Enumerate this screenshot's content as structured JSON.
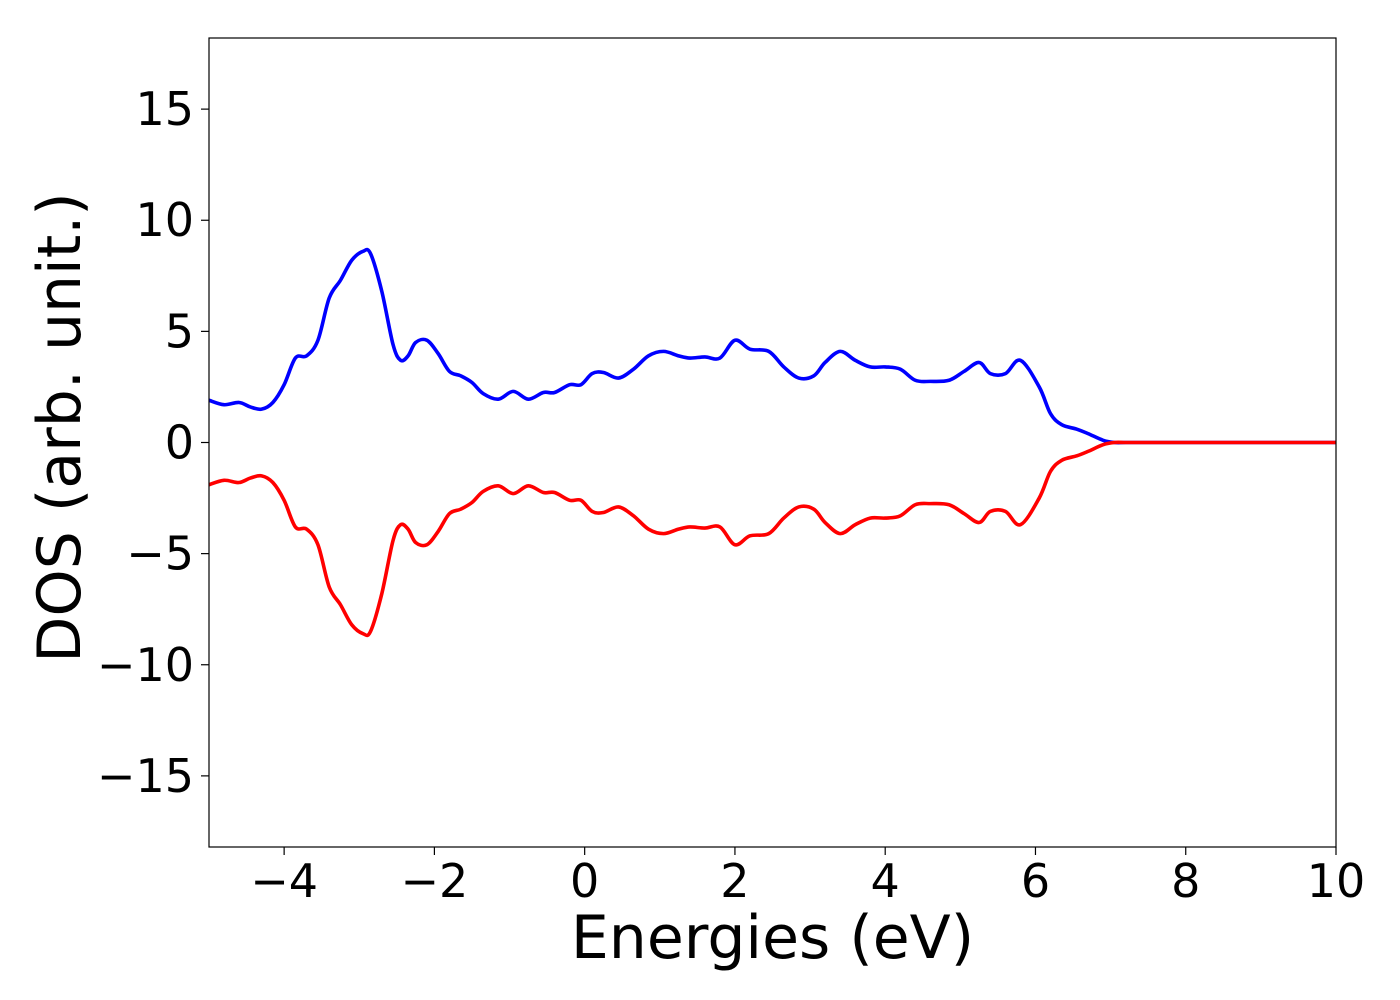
{
  "chart_data": {
    "type": "line",
    "title": "",
    "xlabel": "Energies (eV)",
    "ylabel": "DOS (arb. unit.)",
    "xlim": [
      -5,
      10
    ],
    "ylim": [
      -18.2,
      18.2
    ],
    "xticks": [
      -4,
      -2,
      0,
      2,
      4,
      6,
      8,
      10
    ],
    "xtick_labels": [
      "−4",
      "−2",
      "0",
      "2",
      "4",
      "6",
      "8",
      "10"
    ],
    "yticks": [
      15,
      10,
      5,
      0,
      -5,
      -10,
      -15
    ],
    "ytick_labels": [
      "15",
      "10",
      "5",
      "0",
      "−5",
      "−10",
      "−15"
    ],
    "grid": false,
    "legend": "none",
    "series": [
      {
        "color": "#0000ff",
        "x": [
          -5.0,
          -4.8,
          -4.6,
          -4.45,
          -4.3,
          -4.15,
          -4.0,
          -3.85,
          -3.7,
          -3.55,
          -3.4,
          -3.25,
          -3.1,
          -2.95,
          -2.85,
          -2.7,
          -2.55,
          -2.45,
          -2.35,
          -2.25,
          -2.1,
          -1.95,
          -1.8,
          -1.65,
          -1.5,
          -1.35,
          -1.15,
          -0.95,
          -0.75,
          -0.55,
          -0.4,
          -0.2,
          -0.05,
          0.1,
          0.25,
          0.45,
          0.65,
          0.85,
          1.05,
          1.25,
          1.4,
          1.6,
          1.8,
          2.0,
          2.2,
          2.45,
          2.65,
          2.85,
          3.05,
          3.2,
          3.4,
          3.6,
          3.8,
          4.0,
          4.2,
          4.4,
          4.6,
          4.85,
          5.05,
          5.25,
          5.4,
          5.6,
          5.8,
          6.05,
          6.2,
          6.35,
          6.55,
          6.7,
          6.9,
          7.05,
          7.2,
          7.4,
          7.6,
          7.8,
          8.0,
          8.2,
          8.5,
          9.0,
          9.5,
          10.0
        ],
        "y": [
          1.9,
          1.7,
          1.8,
          1.6,
          1.5,
          1.8,
          2.6,
          3.8,
          3.9,
          4.6,
          6.5,
          7.3,
          8.2,
          8.6,
          8.5,
          6.8,
          4.4,
          3.7,
          3.9,
          4.5,
          4.6,
          4.0,
          3.2,
          3.0,
          2.7,
          2.2,
          1.95,
          2.3,
          1.95,
          2.25,
          2.25,
          2.6,
          2.6,
          3.1,
          3.15,
          2.9,
          3.3,
          3.9,
          4.1,
          3.9,
          3.8,
          3.85,
          3.8,
          4.6,
          4.2,
          4.1,
          3.4,
          2.9,
          3.0,
          3.6,
          4.1,
          3.7,
          3.4,
          3.4,
          3.3,
          2.8,
          2.75,
          2.8,
          3.2,
          3.6,
          3.1,
          3.1,
          3.7,
          2.5,
          1.3,
          0.8,
          0.6,
          0.4,
          0.1,
          0.0,
          0.0,
          0.0,
          0.0,
          0.0,
          0.0,
          0.0,
          0.0,
          0.0,
          0.0,
          0.0
        ]
      },
      {
        "color": "#ff0000",
        "x": [
          -5.0,
          -4.8,
          -4.6,
          -4.45,
          -4.3,
          -4.15,
          -4.0,
          -3.85,
          -3.7,
          -3.55,
          -3.4,
          -3.25,
          -3.1,
          -2.95,
          -2.85,
          -2.7,
          -2.55,
          -2.45,
          -2.35,
          -2.25,
          -2.1,
          -1.95,
          -1.8,
          -1.65,
          -1.5,
          -1.35,
          -1.15,
          -0.95,
          -0.75,
          -0.55,
          -0.4,
          -0.2,
          -0.05,
          0.1,
          0.25,
          0.45,
          0.65,
          0.85,
          1.05,
          1.25,
          1.4,
          1.6,
          1.8,
          2.0,
          2.2,
          2.45,
          2.65,
          2.85,
          3.05,
          3.2,
          3.4,
          3.6,
          3.8,
          4.0,
          4.2,
          4.4,
          4.6,
          4.85,
          5.05,
          5.25,
          5.4,
          5.6,
          5.8,
          6.05,
          6.2,
          6.35,
          6.55,
          6.7,
          6.9,
          7.05,
          7.2,
          7.4,
          7.6,
          7.8,
          8.0,
          8.2,
          8.5,
          9.0,
          9.5,
          10.0
        ],
        "y": [
          -1.9,
          -1.7,
          -1.8,
          -1.6,
          -1.5,
          -1.8,
          -2.6,
          -3.8,
          -3.9,
          -4.6,
          -6.5,
          -7.3,
          -8.2,
          -8.6,
          -8.5,
          -6.8,
          -4.4,
          -3.7,
          -3.9,
          -4.5,
          -4.6,
          -4.0,
          -3.2,
          -3.0,
          -2.7,
          -2.2,
          -1.95,
          -2.3,
          -1.95,
          -2.25,
          -2.25,
          -2.6,
          -2.6,
          -3.1,
          -3.15,
          -2.9,
          -3.3,
          -3.9,
          -4.1,
          -3.9,
          -3.8,
          -3.85,
          -3.8,
          -4.6,
          -4.2,
          -4.1,
          -3.4,
          -2.9,
          -3.0,
          -3.6,
          -4.1,
          -3.7,
          -3.4,
          -3.4,
          -3.3,
          -2.8,
          -2.75,
          -2.8,
          -3.2,
          -3.6,
          -3.1,
          -3.1,
          -3.7,
          -2.5,
          -1.3,
          -0.8,
          -0.6,
          -0.4,
          -0.1,
          0.0,
          0.0,
          0.0,
          0.0,
          0.0,
          0.0,
          0.0,
          0.0,
          0.0,
          0.0,
          0.0
        ]
      }
    ]
  }
}
